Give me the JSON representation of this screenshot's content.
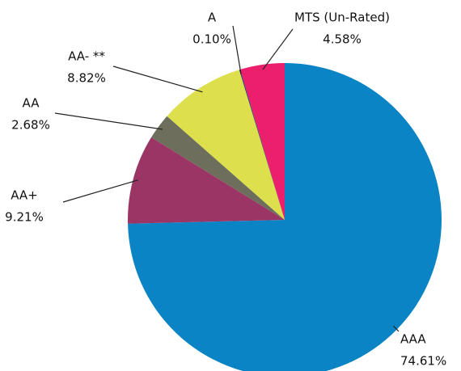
{
  "chart_data": {
    "type": "pie",
    "categories": [
      "AAA",
      "AA+",
      "AA",
      "AA- **",
      "A",
      "MTS (Un-Rated)"
    ],
    "values": [
      74.61,
      9.21,
      2.68,
      8.82,
      0.1,
      4.58
    ],
    "value_labels": [
      "74.61%",
      "9.21%",
      "2.68%",
      "8.82%",
      "0.10%",
      "4.58%"
    ],
    "colors": [
      "#0b84c6",
      "#9b3565",
      "#6e6e5c",
      "#dde04c",
      "#1e3a6c",
      "#ec1f6c"
    ]
  }
}
